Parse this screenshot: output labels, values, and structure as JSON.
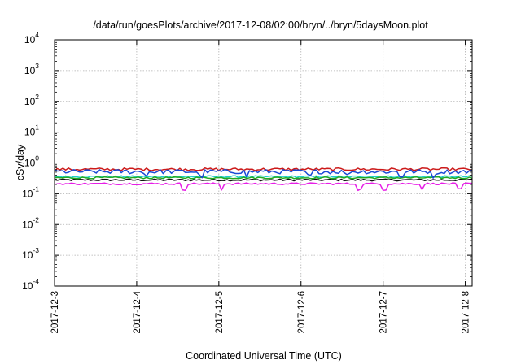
{
  "chart_data": {
    "type": "line",
    "title": "/data/run/goesPlots/archive/2017-12-08/02:00/bryn/../bryn/5daysMoon.plot",
    "xlabel": "Coordinated Universal Time (UTC)",
    "ylabel": "cSv/day",
    "yscale": "log",
    "ylim": [
      0.0001,
      10000
    ],
    "y_ticks": [
      {
        "base": "10",
        "exp": "-4"
      },
      {
        "base": "10",
        "exp": "-3"
      },
      {
        "base": "10",
        "exp": "-2"
      },
      {
        "base": "10",
        "exp": "-1"
      },
      {
        "base": "10",
        "exp": "0"
      },
      {
        "base": "10",
        "exp": "1"
      },
      {
        "base": "10",
        "exp": "2"
      },
      {
        "base": "10",
        "exp": "3"
      },
      {
        "base": "10",
        "exp": "4"
      }
    ],
    "xlim": [
      "2017-12-03 00:00",
      "2017-12-08 02:00"
    ],
    "x_ticks": [
      "2017-12-3",
      "2017-12-4",
      "2017-12-5",
      "2017-12-6",
      "2017-12-7",
      "2017-12-8"
    ],
    "grid": true,
    "legend": "none",
    "series": [
      {
        "color": "#cc1a1a",
        "base_value": 0.62
      },
      {
        "color": "#1a4ad6",
        "base_value": 0.52
      },
      {
        "color": "#1ed0c8",
        "base_value": 0.36
      },
      {
        "color": "#22aa22",
        "base_value": 0.33
      },
      {
        "color": "#111111",
        "base_value": 0.28
      },
      {
        "color": "#e61ee6",
        "base_value": 0.21
      }
    ]
  }
}
